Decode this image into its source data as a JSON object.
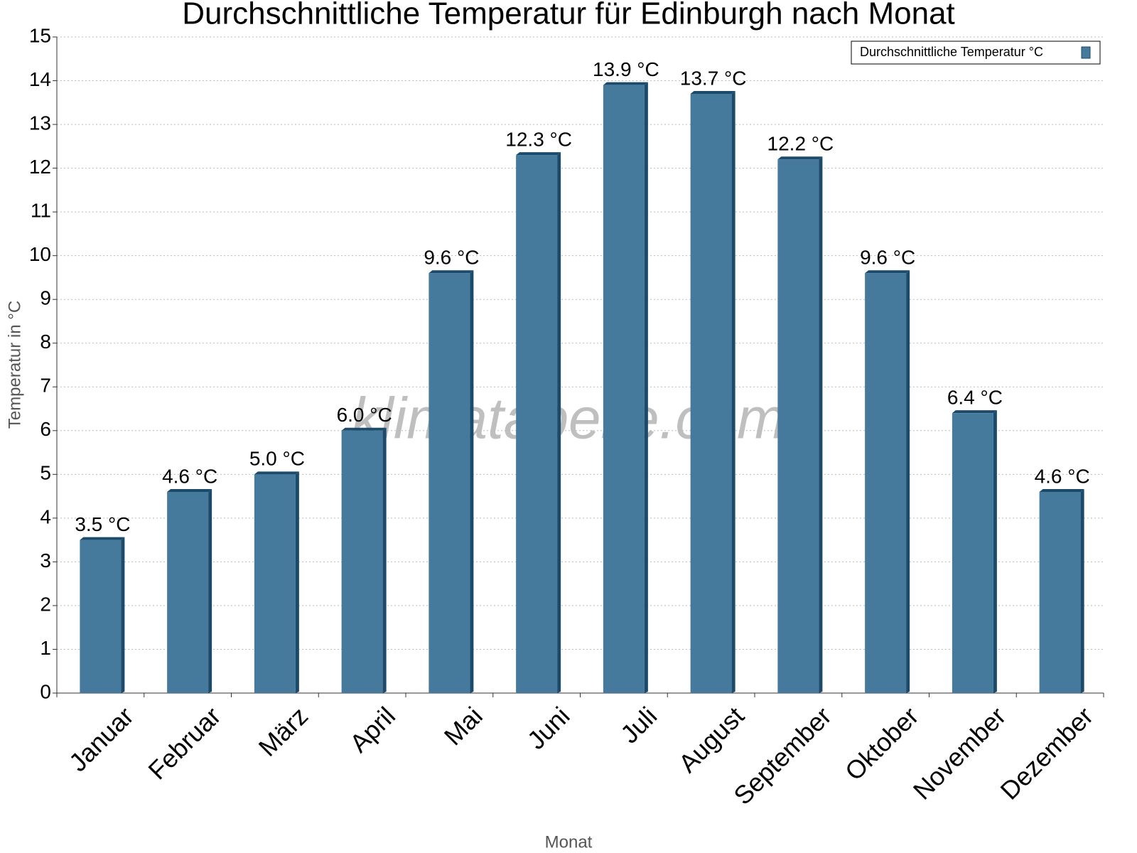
{
  "chart_data": {
    "type": "bar",
    "title": "Durchschnittliche Temperatur für Edinburgh nach Monat",
    "x_label": "Monat",
    "y_label": "Temperatur in °C",
    "watermark": "klimatabelle.com",
    "categories": [
      "Januar",
      "Februar",
      "März",
      "April",
      "Mai",
      "Juni",
      "Juli",
      "August",
      "September",
      "Oktober",
      "November",
      "Dezember"
    ],
    "series": [
      {
        "name": "Durchschnittliche Temperatur °C",
        "color": "#467a9c",
        "values": [
          3.5,
          4.6,
          5.0,
          6.0,
          9.6,
          12.3,
          13.9,
          13.7,
          12.2,
          9.6,
          6.4,
          4.6
        ],
        "value_labels": [
          "3.5 °C",
          "4.6 °C",
          "5.0 °C",
          "6.0 °C",
          "9.6 °C",
          "12.3 °C",
          "13.9 °C",
          "13.7 °C",
          "12.2 °C",
          "9.6 °C",
          "6.4 °C",
          "4.6 °C"
        ]
      }
    ],
    "ylim": [
      0,
      15
    ],
    "yticks": [
      0,
      1,
      2,
      3,
      4,
      5,
      6,
      7,
      8,
      9,
      10,
      11,
      12,
      13,
      14,
      15
    ],
    "grid": true,
    "legend_position": "top-right"
  }
}
